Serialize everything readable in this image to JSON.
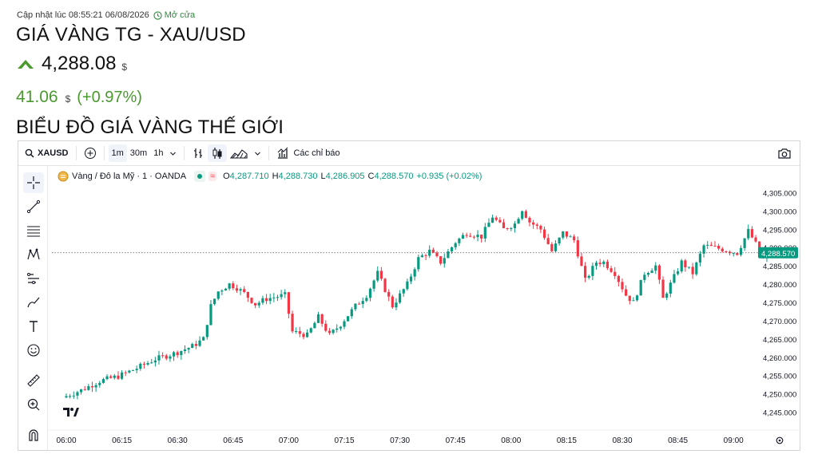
{
  "header": {
    "updated_label": "Cập nhật lúc 08:55:21 06/08/2026",
    "market_status": "Mở cửa",
    "title": "GIÁ VÀNG TG - XAU/USD",
    "price": "4,288.08",
    "price_currency": "$",
    "change": "41.06",
    "change_currency": "$",
    "change_percent": "(+0.97%)",
    "section_title": "BIỂU ĐỒ GIÁ VÀNG THẾ GIỚI"
  },
  "toolbar": {
    "symbol": "XAUSD",
    "intervals": [
      "1m",
      "30m",
      "1h"
    ],
    "selected_interval": "1m",
    "indicators_label": "Các chỉ báo"
  },
  "legend": {
    "name": "Vàng / Đô la Mỹ · 1 · OANDA",
    "o_label": "O",
    "o": "4,287.710",
    "h_label": "H",
    "h": "4,288.730",
    "l_label": "L",
    "l": "4,286.905",
    "c_label": "C",
    "c": "4,288.570",
    "change": "+0.935 (+0.02%)"
  },
  "colors": {
    "up": "#089981",
    "down": "#f23645",
    "accent_green": "#4a9a2f",
    "price_tag": "#089981"
  },
  "chart_data": {
    "type": "candlestick",
    "x_ticks": [
      "06:00",
      "06:15",
      "06:30",
      "06:45",
      "07:00",
      "07:15",
      "07:30",
      "07:45",
      "08:00",
      "08:15",
      "08:30",
      "08:45",
      "09:00"
    ],
    "y_ticks": [
      "4,305.000",
      "4,300.000",
      "4,295.000",
      "4,290.000",
      "4,285.000",
      "4,280.000",
      "4,275.000",
      "4,270.000",
      "4,265.000",
      "4,260.000",
      "4,255.000",
      "4,250.000",
      "4,245.000"
    ],
    "ylim": [
      4242.5,
      4307.5
    ],
    "last_price": 4288.57,
    "last_price_label": "4,288.570",
    "anchors": [
      {
        "m": 0,
        "v": 4249.0
      },
      {
        "m": 5,
        "v": 4251.0
      },
      {
        "m": 10,
        "v": 4253.5
      },
      {
        "m": 15,
        "v": 4254.8
      },
      {
        "m": 20,
        "v": 4257.0
      },
      {
        "m": 25,
        "v": 4259.5
      },
      {
        "m": 30,
        "v": 4261.0
      },
      {
        "m": 35,
        "v": 4263.0
      },
      {
        "m": 38,
        "v": 4265.0
      },
      {
        "m": 40,
        "v": 4274.0
      },
      {
        "m": 42,
        "v": 4278.0
      },
      {
        "m": 45,
        "v": 4280.0
      },
      {
        "m": 47,
        "v": 4279.0
      },
      {
        "m": 49,
        "v": 4277.5
      },
      {
        "m": 52,
        "v": 4274.5
      },
      {
        "m": 55,
        "v": 4276.0
      },
      {
        "m": 60,
        "v": 4277.0
      },
      {
        "m": 62,
        "v": 4267.0
      },
      {
        "m": 66,
        "v": 4266.0
      },
      {
        "m": 69,
        "v": 4271.0
      },
      {
        "m": 72,
        "v": 4266.0
      },
      {
        "m": 75,
        "v": 4269.0
      },
      {
        "m": 79,
        "v": 4274.0
      },
      {
        "m": 82,
        "v": 4277.0
      },
      {
        "m": 85,
        "v": 4283.0
      },
      {
        "m": 89,
        "v": 4274.0
      },
      {
        "m": 93,
        "v": 4280.0
      },
      {
        "m": 96,
        "v": 4287.0
      },
      {
        "m": 99,
        "v": 4289.0
      },
      {
        "m": 102,
        "v": 4286.0
      },
      {
        "m": 106,
        "v": 4291.5
      },
      {
        "m": 109,
        "v": 4294.0
      },
      {
        "m": 113,
        "v": 4293.0
      },
      {
        "m": 116,
        "v": 4298.5
      },
      {
        "m": 119,
        "v": 4295.0
      },
      {
        "m": 122,
        "v": 4296.5
      },
      {
        "m": 124,
        "v": 4300.5
      },
      {
        "m": 126,
        "v": 4297.0
      },
      {
        "m": 129,
        "v": 4295.0
      },
      {
        "m": 132,
        "v": 4289.0
      },
      {
        "m": 135,
        "v": 4294.0
      },
      {
        "m": 138,
        "v": 4292.0
      },
      {
        "m": 141,
        "v": 4281.0
      },
      {
        "m": 144,
        "v": 4286.0
      },
      {
        "m": 146,
        "v": 4286.0
      },
      {
        "m": 149,
        "v": 4283.0
      },
      {
        "m": 152,
        "v": 4277.0
      },
      {
        "m": 154,
        "v": 4275.0
      },
      {
        "m": 157,
        "v": 4283.0
      },
      {
        "m": 160,
        "v": 4285.0
      },
      {
        "m": 162,
        "v": 4276.0
      },
      {
        "m": 164,
        "v": 4280.0
      },
      {
        "m": 167,
        "v": 4286.0
      },
      {
        "m": 170,
        "v": 4283.0
      },
      {
        "m": 173,
        "v": 4290.5
      },
      {
        "m": 176,
        "v": 4290.0
      },
      {
        "m": 180,
        "v": 4289.0
      },
      {
        "m": 182,
        "v": 4288.5
      },
      {
        "m": 185,
        "v": 4294.5
      },
      {
        "m": 187,
        "v": 4291.0
      },
      {
        "m": 189,
        "v": 4287.0
      },
      {
        "m": 190,
        "v": 4288.57
      }
    ]
  }
}
